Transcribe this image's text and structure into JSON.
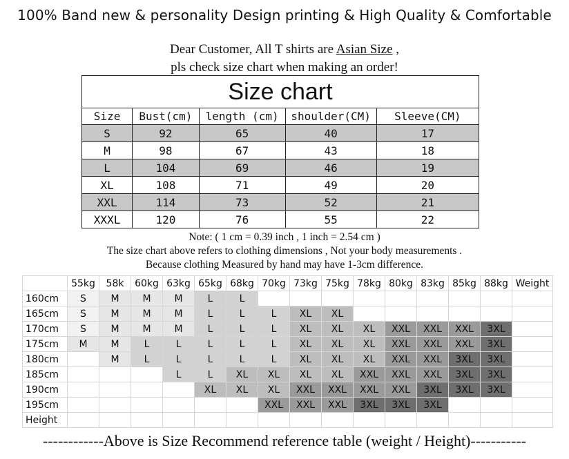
{
  "banner": "100% Band new & personality Design printing & High Quality & Comfortable",
  "note_lines": {
    "line1_before": "Dear Customer, All T shirts are ",
    "line1_underlined": "Asian Size",
    "line1_after": " ,",
    "line2": "pls check size chart when making an order!"
  },
  "size_chart": {
    "title": "Size chart",
    "headers": [
      "Size",
      "Bust(cm)",
      "length (cm)",
      "shoulder(CM)",
      "Sleeve(CM)"
    ],
    "rows": [
      [
        "S",
        "92",
        "65",
        "40",
        "17"
      ],
      [
        "M",
        "98",
        "67",
        "43",
        "18"
      ],
      [
        "L",
        "104",
        "69",
        "46",
        "19"
      ],
      [
        "XL",
        "108",
        "71",
        "49",
        "20"
      ],
      [
        "XXL",
        "114",
        "73",
        "52",
        "21"
      ],
      [
        "XXXL",
        "120",
        "76",
        "55",
        "22"
      ]
    ]
  },
  "notes": {
    "line1": "Note:  ( 1 cm = 0.39 inch , 1 inch = 2.54 cm )",
    "line2": "The size chart above refers to clothing dimensions , Not your body measurements .",
    "line3": "Because clothing Measured by hand may have 1-3cm difference."
  },
  "recommend_table": {
    "weights": [
      "55kg",
      "58k",
      "60kg",
      "63kg",
      "65kg",
      "68kg",
      "70kg",
      "73kg",
      "75kg",
      "78kg",
      "80kg",
      "83kg",
      "85kg",
      "88kg",
      "Weight"
    ],
    "heights": [
      "160cm",
      "165cm",
      "170cm",
      "175cm",
      "180cm",
      "185cm",
      "190cm",
      "195cm",
      "Height"
    ],
    "cells": [
      [
        "S",
        "M",
        "M",
        "M",
        "L",
        "L",
        "",
        "",
        "",
        "",
        "",
        "",
        "",
        ""
      ],
      [
        "S",
        "M",
        "M",
        "M",
        "L",
        "L",
        "L",
        "XL",
        "XL",
        "",
        "",
        "",
        "",
        ""
      ],
      [
        "S",
        "M",
        "M",
        "M",
        "L",
        "L",
        "L",
        "XL",
        "XL",
        "XL",
        "XXL",
        "XXL",
        "XXL",
        "3XL"
      ],
      [
        "M",
        "M",
        "L",
        "L",
        "L",
        "L",
        "L",
        "XL",
        "XL",
        "XL",
        "XXL",
        "XXL",
        "XXL",
        "3XL"
      ],
      [
        "",
        "M",
        "L",
        "L",
        "L",
        "L",
        "L",
        "XL",
        "XL",
        "XL",
        "XXL",
        "XXL",
        "3XL",
        "3XL"
      ],
      [
        "",
        "",
        "",
        "L",
        "L",
        "XL",
        "XL",
        "XL",
        "XL",
        "XXL",
        "XXL",
        "XXL",
        "3XL",
        "3XL"
      ],
      [
        "",
        "",
        "",
        "",
        "XL",
        "XL",
        "XL",
        "XXL",
        "XXL",
        "XXL",
        "XXL",
        "3XL",
        "3XL",
        "3XL"
      ],
      [
        "",
        "",
        "",
        "",
        "",
        "",
        "XXL",
        "XXL",
        "XXL",
        "3XL",
        "3XL",
        "3XL",
        "",
        ""
      ],
      [
        "",
        "",
        "",
        "",
        "",
        "",
        "",
        "",
        "",
        "",
        "",
        "",
        "",
        ""
      ]
    ],
    "size_colors": {
      "S": "#f2f2f2",
      "M": "#e6e6e6",
      "L": "#d2d2d2",
      "XL": "#bdbdbd",
      "XXL": "#9a9a9a",
      "3XL": "#6e6e6e"
    }
  },
  "footer": "------------Above is Size Recommend reference table (weight / Height)-----------"
}
